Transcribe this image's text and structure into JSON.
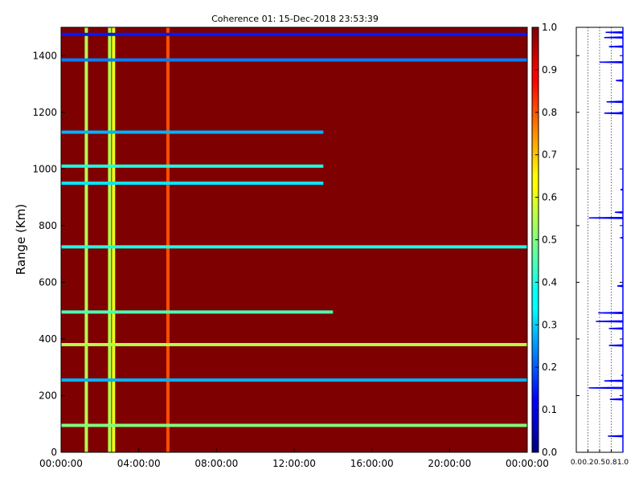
{
  "chart_data": [
    {
      "type": "heatmap",
      "title": "Coherence 01: 15-Dec-2018 23:53:39",
      "xlabel": "",
      "ylabel": "Range (Km)",
      "x_tick_labels": [
        "00:00:00",
        "04:00:00",
        "08:00:00",
        "12:00:00",
        "16:00:00",
        "20:00:00",
        "00:00:00"
      ],
      "y_ticks": [
        0,
        200,
        400,
        600,
        800,
        1000,
        1200,
        1400
      ],
      "ylim": [
        0,
        1500
      ],
      "xlim_hours": [
        0,
        24
      ],
      "colormap": "jet",
      "colorbar": {
        "min": 0.0,
        "max": 1.0,
        "tick_labels": [
          "0.0",
          "0.1",
          "0.2",
          "0.3",
          "0.4",
          "0.5",
          "0.6",
          "0.7",
          "0.8",
          "0.9",
          "1.0"
        ]
      },
      "background_value": 0.97,
      "low_coherence_time_bands_hours": [
        {
          "hour": 1.3,
          "value": 0.55
        },
        {
          "hour": 2.5,
          "value": 0.55
        },
        {
          "hour": 2.7,
          "value": 0.6
        },
        {
          "hour": 5.5,
          "value": 0.8
        }
      ],
      "low_coherence_range_bands_km": [
        {
          "range": 1475,
          "value": 0.15,
          "until_hour": 24
        },
        {
          "range": 1385,
          "value": 0.25,
          "until_hour": 24
        },
        {
          "range": 1130,
          "value": 0.3,
          "until_hour": 13.5
        },
        {
          "range": 1010,
          "value": 0.4,
          "until_hour": 13.5
        },
        {
          "range": 950,
          "value": 0.35,
          "until_hour": 13.5
        },
        {
          "range": 725,
          "value": 0.4,
          "until_hour": 24
        },
        {
          "range": 495,
          "value": 0.45,
          "until_hour": 14
        },
        {
          "range": 380,
          "value": 0.55,
          "until_hour": 24
        },
        {
          "range": 255,
          "value": 0.3,
          "until_hour": 24
        },
        {
          "range": 95,
          "value": 0.5,
          "until_hour": 24
        }
      ]
    },
    {
      "type": "line",
      "title": "",
      "xlabel": "",
      "ylabel": "",
      "x_tick_labels": [
        "0.0",
        "0.2",
        "0.5",
        "0.8",
        "1.0"
      ],
      "x_ticks": [
        0.0,
        0.25,
        0.5,
        0.75,
        1.0
      ],
      "xlim": [
        0,
        1
      ],
      "ylim": [
        0,
        1500
      ],
      "grid_x": true,
      "series": [
        {
          "color": "#0000ff",
          "points": [
            [
              1.0,
              0
            ],
            [
              1.0,
              55
            ],
            [
              0.68,
              57
            ],
            [
              1.0,
              59
            ],
            [
              1.0,
              185
            ],
            [
              0.72,
              187
            ],
            [
              1.0,
              189
            ],
            [
              1.0,
              225
            ],
            [
              0.27,
              227
            ],
            [
              1.0,
              229
            ],
            [
              1.0,
              250
            ],
            [
              0.6,
              252
            ],
            [
              1.0,
              254
            ],
            [
              1.0,
              270
            ],
            [
              0.98,
              272
            ],
            [
              1.0,
              274
            ],
            [
              1.0,
              375
            ],
            [
              0.7,
              377
            ],
            [
              1.0,
              379
            ],
            [
              1.0,
              435
            ],
            [
              0.7,
              437
            ],
            [
              1.0,
              439
            ],
            [
              1.0,
              460
            ],
            [
              0.42,
              462
            ],
            [
              1.0,
              464
            ],
            [
              1.0,
              490
            ],
            [
              0.47,
              492
            ],
            [
              1.0,
              494
            ],
            [
              1.0,
              585
            ],
            [
              0.88,
              587
            ],
            [
              1.0,
              589
            ],
            [
              1.0,
              755
            ],
            [
              0.96,
              757
            ],
            [
              1.0,
              759
            ],
            [
              1.0,
              825
            ],
            [
              0.27,
              827
            ],
            [
              1.0,
              829
            ],
            [
              1.0,
              845
            ],
            [
              0.83,
              847
            ],
            [
              1.0,
              849
            ],
            [
              1.0,
              925
            ],
            [
              0.95,
              927
            ],
            [
              1.0,
              929
            ],
            [
              1.0,
              1195
            ],
            [
              0.6,
              1197
            ],
            [
              1.0,
              1199
            ],
            [
              1.0,
              1235
            ],
            [
              0.65,
              1237
            ],
            [
              1.0,
              1239
            ],
            [
              1.0,
              1310
            ],
            [
              0.85,
              1312
            ],
            [
              1.0,
              1314
            ],
            [
              1.0,
              1375
            ],
            [
              0.5,
              1377
            ],
            [
              1.0,
              1379
            ],
            [
              1.0,
              1430
            ],
            [
              0.7,
              1432
            ],
            [
              1.0,
              1434
            ],
            [
              1.0,
              1462
            ],
            [
              0.6,
              1464
            ],
            [
              1.0,
              1466
            ],
            [
              1.0,
              1480
            ],
            [
              0.63,
              1482
            ],
            [
              1.0,
              1484
            ],
            [
              1.0,
              1500
            ]
          ]
        }
      ]
    }
  ]
}
